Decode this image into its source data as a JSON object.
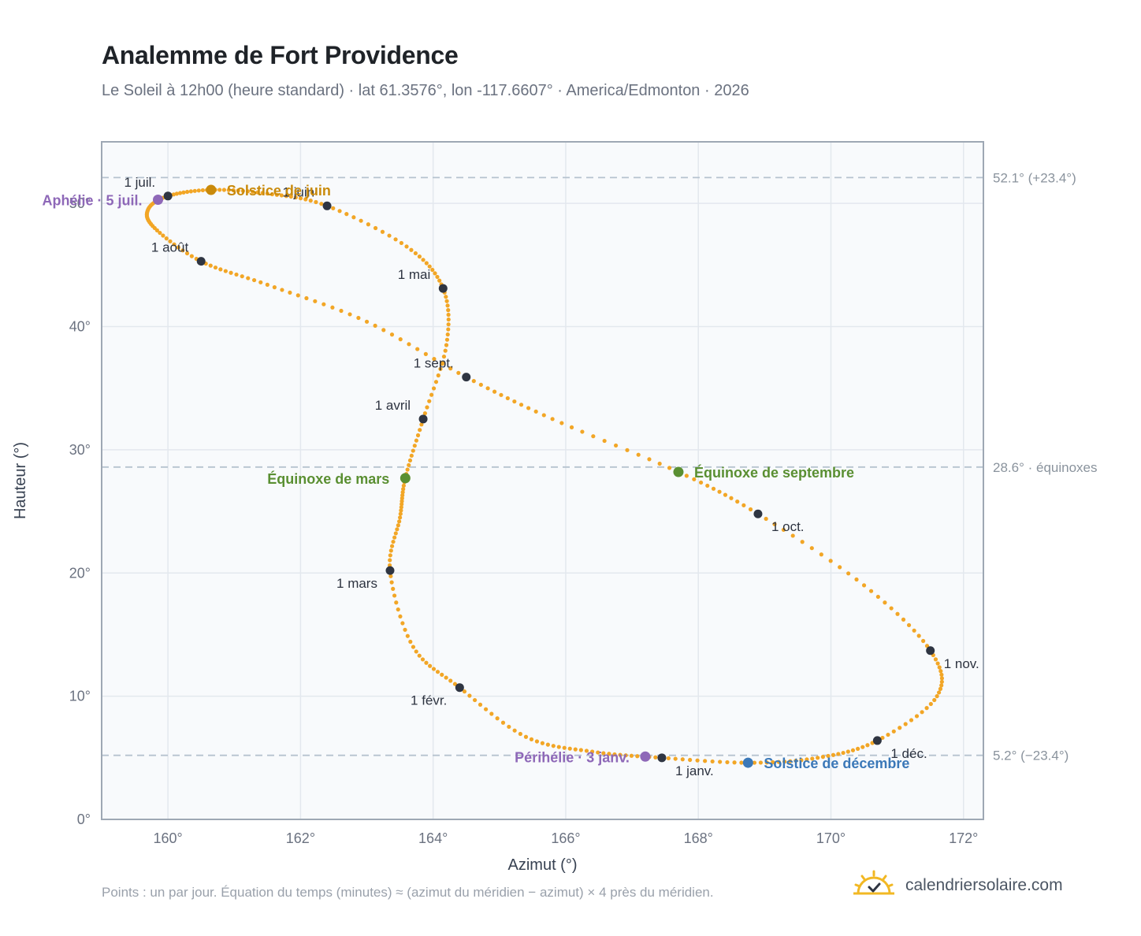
{
  "title": "Analemme de Fort Providence",
  "subtitle": "Le Soleil à 12h00 (heure standard) · lat 61.3576°, lon -117.6607° · America/Edmonton · 2026",
  "footnote": "Points : un par jour. Équation du temps (minutes) ≈ (azimut du méridien − azimut) × 4 près du méridien.",
  "brand": {
    "name": "calendriersolaire.com",
    "logo_icon": "sun-check-icon"
  },
  "colors": {
    "curve": "#f2a626",
    "month_point": "#2f3542",
    "equinox": "#5a8f32",
    "june_solstice": "#c98a0b",
    "december_solstice": "#3b78b8",
    "apsis": "#8e68b8",
    "plot_bg": "#f8fafc",
    "grid": "#e3e8ee",
    "ref_line": "#b6c3cf"
  },
  "chart_data": {
    "type": "scatter",
    "title": "Analemme de Fort Providence",
    "xlabel": "Azimut (°)",
    "ylabel": "Hauteur (°)",
    "xlim": [
      159.0,
      172.3
    ],
    "ylim": [
      0,
      55
    ],
    "x_ticks": [
      160,
      162,
      164,
      166,
      168,
      170,
      172
    ],
    "x_tick_labels": [
      "160°",
      "162°",
      "164°",
      "166°",
      "168°",
      "170°",
      "172°"
    ],
    "y_ticks": [
      0,
      10,
      20,
      30,
      40,
      50
    ],
    "y_tick_labels": [
      "0°",
      "10°",
      "20°",
      "30°",
      "40°",
      "50°"
    ],
    "grid": true,
    "reference_lines": [
      {
        "y": 52.1,
        "label": "52.1° (+23.4°)"
      },
      {
        "y": 28.6,
        "label": "28.6° · équinoxes"
      },
      {
        "y": 5.2,
        "label": "5.2° (−23.4°)"
      }
    ],
    "series": [
      {
        "kind": "daily-path",
        "points": [
          [
            167.45,
            5.0
          ],
          [
            166.4,
            5.5
          ],
          [
            165.4,
            6.7
          ],
          [
            164.4,
            10.7
          ],
          [
            163.7,
            14.0
          ],
          [
            163.35,
            20.2
          ],
          [
            163.5,
            24.5
          ],
          [
            163.58,
            27.7
          ],
          [
            163.85,
            32.5
          ],
          [
            164.2,
            38.5
          ],
          [
            164.15,
            43.1
          ],
          [
            163.6,
            46.5
          ],
          [
            162.4,
            49.8
          ],
          [
            161.5,
            50.8
          ],
          [
            160.65,
            51.1
          ],
          [
            160.0,
            50.6
          ],
          [
            159.7,
            49.5
          ],
          [
            159.8,
            48.0
          ],
          [
            160.5,
            45.3
          ],
          [
            161.5,
            43.4
          ],
          [
            163.0,
            40.4
          ],
          [
            164.5,
            35.9
          ],
          [
            165.8,
            32.5
          ],
          [
            167.7,
            28.2
          ],
          [
            168.9,
            24.8
          ],
          [
            170.5,
            19.0
          ],
          [
            171.5,
            13.7
          ],
          [
            171.6,
            10.0
          ],
          [
            170.7,
            6.4
          ],
          [
            169.8,
            5.0
          ],
          [
            168.75,
            4.6
          ],
          [
            167.45,
            5.0
          ]
        ]
      }
    ],
    "months": [
      {
        "label": "1 janv.",
        "x": 167.45,
        "y": 5.0,
        "anchor": "below-right"
      },
      {
        "label": "1 févr.",
        "x": 164.4,
        "y": 10.7,
        "anchor": "below-left"
      },
      {
        "label": "1 mars",
        "x": 163.35,
        "y": 20.2,
        "anchor": "below-left"
      },
      {
        "label": "1 avril",
        "x": 163.85,
        "y": 32.5,
        "anchor": "above-left"
      },
      {
        "label": "1 mai",
        "x": 164.15,
        "y": 43.1,
        "anchor": "above-left"
      },
      {
        "label": "1 juin",
        "x": 162.4,
        "y": 49.8,
        "anchor": "above-left"
      },
      {
        "label": "1 juil.",
        "x": 160.0,
        "y": 50.6,
        "anchor": "above-left"
      },
      {
        "label": "1 août",
        "x": 160.5,
        "y": 45.3,
        "anchor": "above-left"
      },
      {
        "label": "1 sept.",
        "x": 164.5,
        "y": 35.9,
        "anchor": "above-left"
      },
      {
        "label": "1 oct.",
        "x": 168.9,
        "y": 24.8,
        "anchor": "below-right"
      },
      {
        "label": "1 nov.",
        "x": 171.5,
        "y": 13.7,
        "anchor": "below-right"
      },
      {
        "label": "1 déc.",
        "x": 170.7,
        "y": 6.4,
        "anchor": "below-right"
      }
    ],
    "events": [
      {
        "label": "Solstice de juin",
        "x": 160.65,
        "y": 51.1,
        "color_key": "june_solstice",
        "side": "right"
      },
      {
        "label": "Aphélie · 5 juil.",
        "x": 159.85,
        "y": 50.3,
        "color_key": "apsis",
        "side": "left"
      },
      {
        "label": "Équinoxe de mars",
        "x": 163.58,
        "y": 27.7,
        "color_key": "equinox",
        "side": "left"
      },
      {
        "label": "Équinoxe de septembre",
        "x": 167.7,
        "y": 28.2,
        "color_key": "equinox",
        "side": "right"
      },
      {
        "label": "Périhélie · 3 janv.",
        "x": 167.2,
        "y": 5.1,
        "color_key": "apsis",
        "side": "left"
      },
      {
        "label": "Solstice de décembre",
        "x": 168.75,
        "y": 4.6,
        "color_key": "december_solstice",
        "side": "right"
      }
    ]
  }
}
